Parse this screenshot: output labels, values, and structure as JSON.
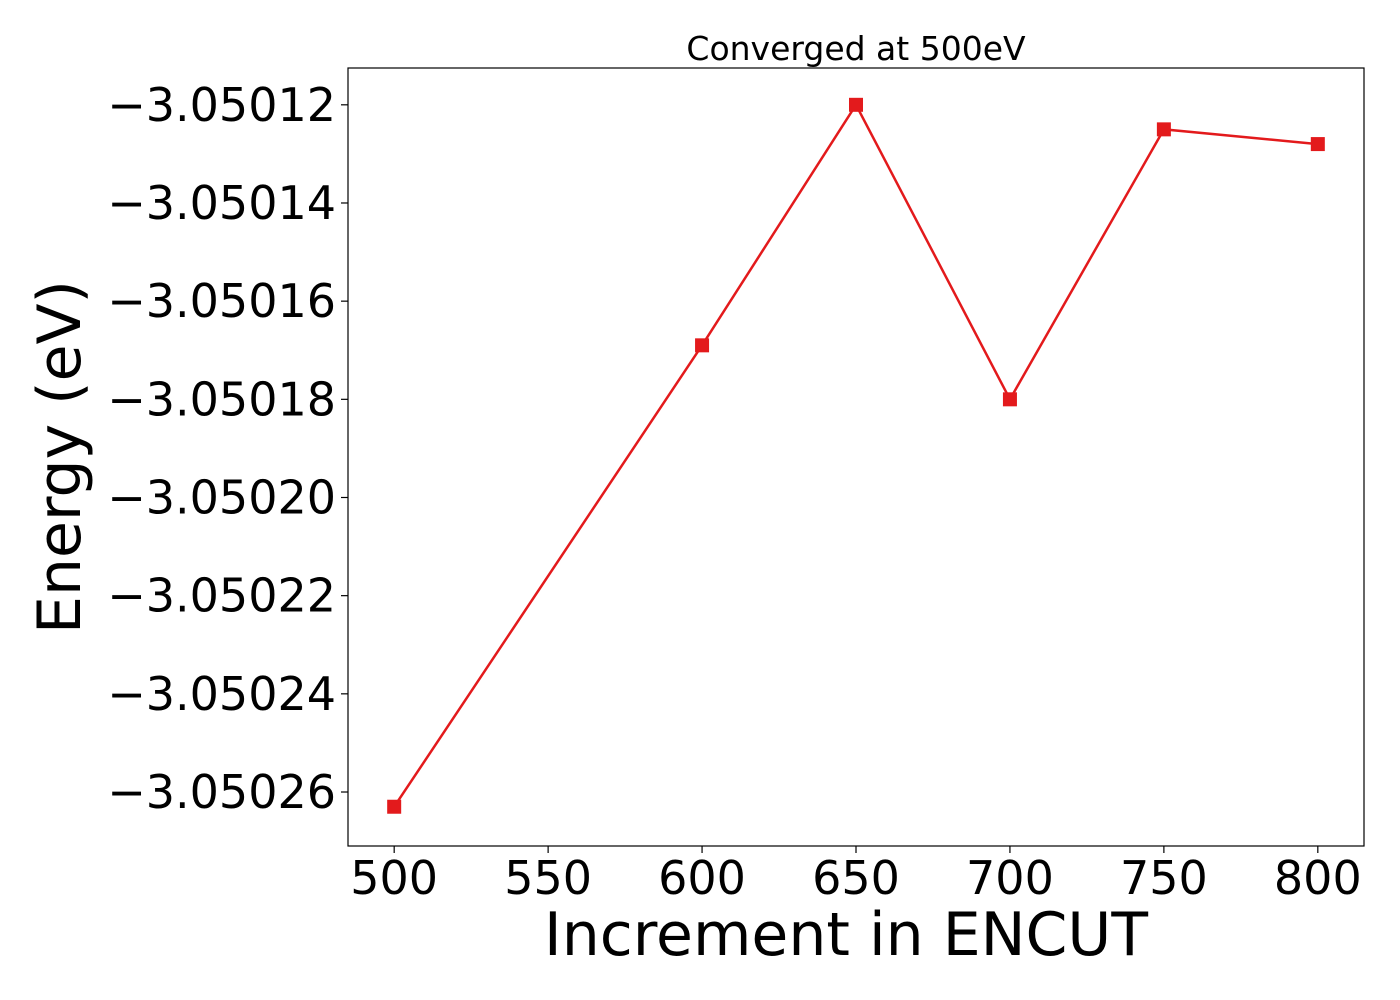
{
  "chart_data": {
    "type": "line",
    "title": "Converged at 500eV",
    "xlabel": "Increment in ENCUT",
    "ylabel": "Energy (eV)",
    "x": [
      500,
      600,
      650,
      700,
      750,
      800
    ],
    "series": [
      {
        "values": [
          -3.050263,
          -3.050169,
          -3.05012,
          -3.05018,
          -3.050125,
          -3.050128
        ],
        "color": "#e31a1c",
        "marker": "square"
      }
    ],
    "xlim": [
      485,
      815
    ],
    "ylim": [
      -3.050271,
      -3.0501125
    ],
    "xticks": [
      500,
      550,
      600,
      650,
      700,
      750,
      800
    ],
    "yticks": [
      -3.05026,
      -3.05024,
      -3.05022,
      -3.0502,
      -3.05018,
      -3.05016,
      -3.05014,
      -3.05012
    ],
    "xtick_labels": [
      "500",
      "550",
      "600",
      "650",
      "700",
      "750",
      "800"
    ],
    "ytick_labels": [
      "−3.05026",
      "−3.05024",
      "−3.05022",
      "−3.05020",
      "−3.05018",
      "−3.05016",
      "−3.05014",
      "−3.05012"
    ],
    "grid": false
  }
}
